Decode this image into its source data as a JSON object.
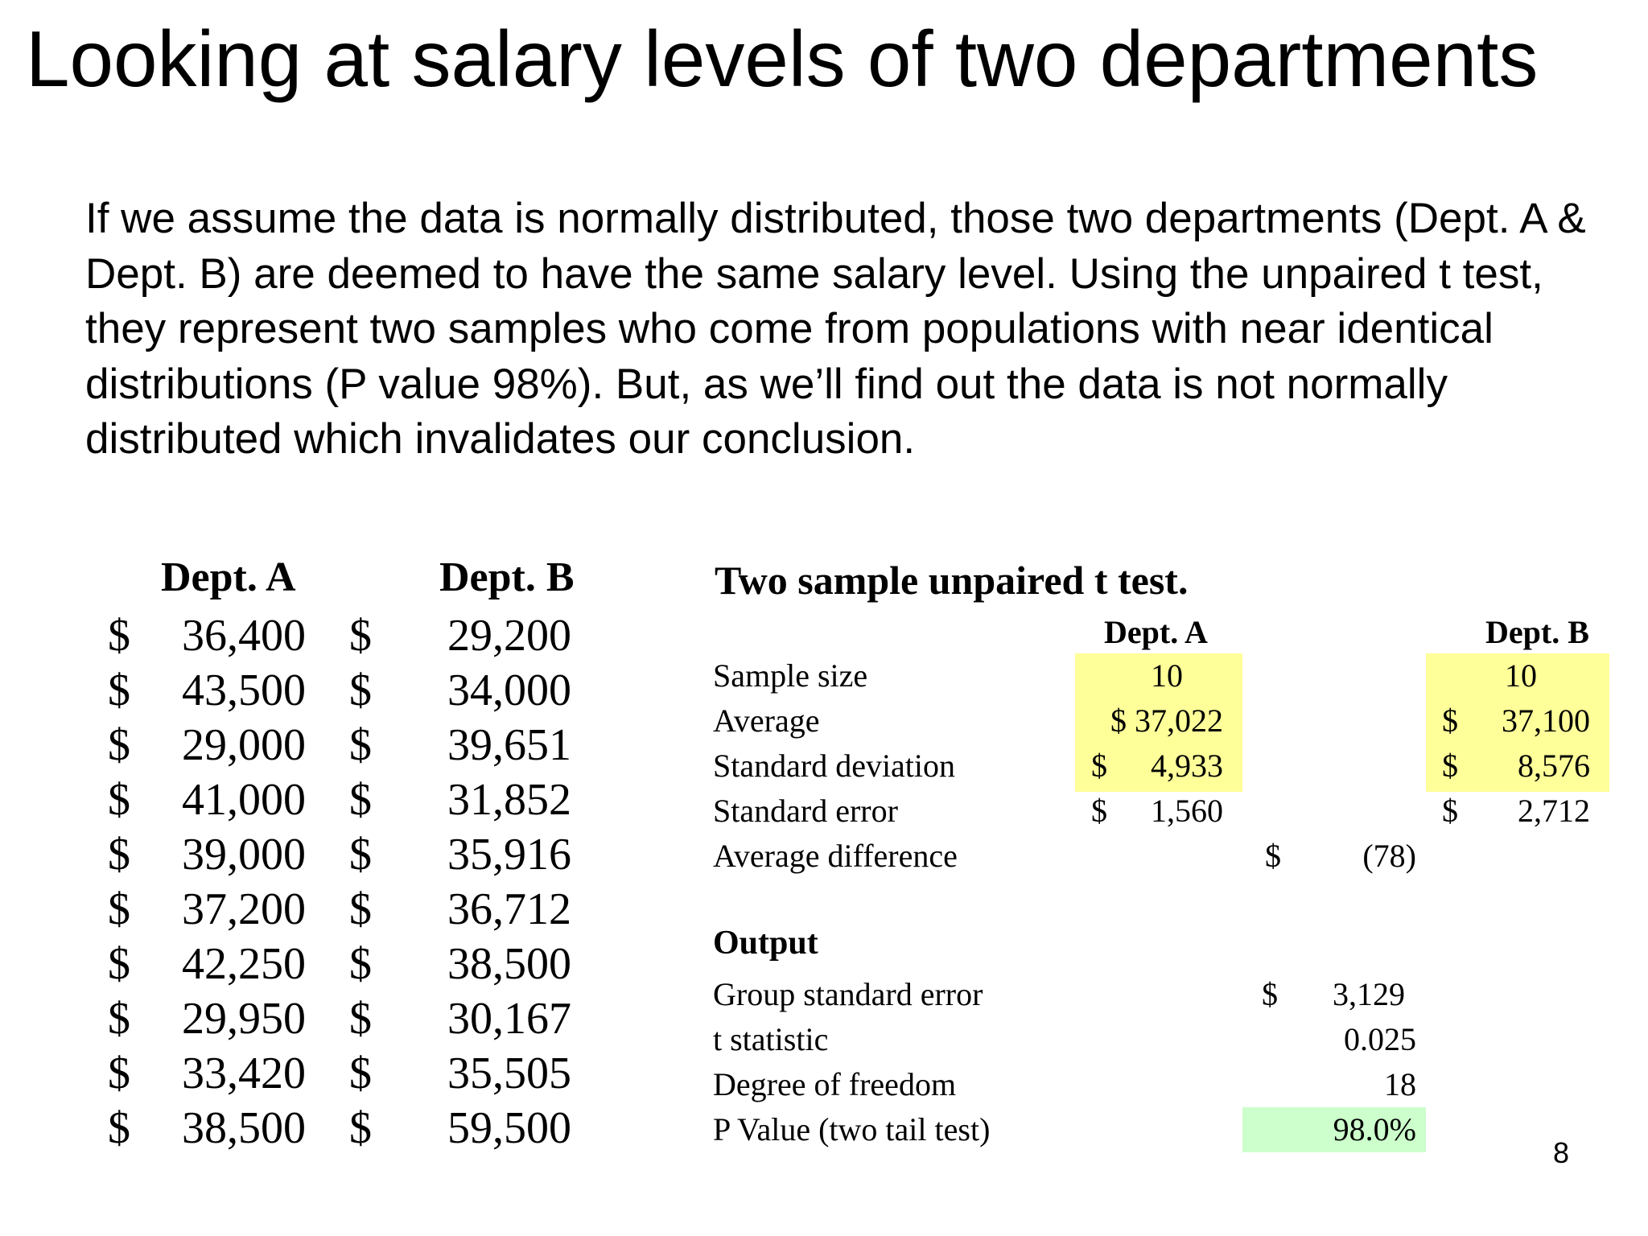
{
  "slide": {
    "title": "Looking at salary levels of two departments",
    "paragraph": "If we assume the data is normally distributed, those two departments (Dept. A & Dept. B) are deemed to have the same salary level.  Using the unpaired t test, they represent two samples who come from populations with near identical distributions (P value 98%).  But, as we’ll find out the data is not normally distributed which invalidates our conclusion.",
    "page_number": "8"
  },
  "salary_table": {
    "headers": [
      "Dept. A",
      "Dept. B"
    ],
    "currency": "$",
    "rows": [
      {
        "a": "36,400",
        "b": "29,200"
      },
      {
        "a": "43,500",
        "b": "34,000"
      },
      {
        "a": "29,000",
        "b": "39,651"
      },
      {
        "a": "41,000",
        "b": "31,852"
      },
      {
        "a": "39,000",
        "b": "35,916"
      },
      {
        "a": "37,200",
        "b": "36,712"
      },
      {
        "a": "42,250",
        "b": "38,500"
      },
      {
        "a": "29,950",
        "b": "30,167"
      },
      {
        "a": "33,420",
        "b": "35,505"
      },
      {
        "a": "38,500",
        "b": "59,500"
      }
    ]
  },
  "ttest": {
    "title": "Two sample unpaired t test.",
    "col_a": "Dept. A",
    "col_b": "Dept. B",
    "rows": [
      {
        "label": "Sample size",
        "a_cur": "",
        "a_val": "10",
        "b_cur": "",
        "b_val": "10"
      },
      {
        "label": "Average",
        "a_cur": "",
        "a_val": "$ 37,022",
        "b_cur": "$",
        "b_val": "37,100"
      },
      {
        "label": "Standard deviation",
        "a_cur": "$",
        "a_val": "4,933",
        "b_cur": "$",
        "b_val": "8,576"
      },
      {
        "label": "Standard error",
        "a_cur": "$",
        "a_val": "1,560",
        "b_cur": "$",
        "b_val": "2,712"
      }
    ],
    "avg_diff": {
      "label": "Average difference",
      "cur": "$",
      "val": "(78)"
    },
    "output_heading": "Output",
    "output_rows": [
      {
        "label": "Group standard error",
        "cur": "$",
        "val": "3,129"
      },
      {
        "label": "t statistic",
        "cur": "",
        "val": "0.025"
      },
      {
        "label": "Degree of freedom",
        "cur": "",
        "val": "18"
      },
      {
        "label": "P Value (two tail test)",
        "cur": "",
        "val": "98.0%"
      }
    ],
    "highlight_yellow": "#ffff99",
    "highlight_green": "#ccffcc"
  }
}
